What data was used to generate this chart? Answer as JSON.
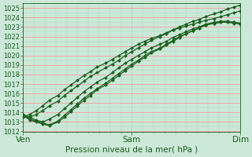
{
  "title": "Pression niveau de la mer( hPa )",
  "bg_color": "#cce8d8",
  "plot_bg_color": "#cce8d8",
  "grid_color_h": "#f0a0a0",
  "grid_color_v": "#a8d8b8",
  "line_color": "#1a6020",
  "marker": "D",
  "marker_size": 2.2,
  "lw": 0.9,
  "ylim": [
    1012,
    1025.5
  ],
  "yticks": [
    1012,
    1013,
    1014,
    1015,
    1016,
    1017,
    1018,
    1019,
    1020,
    1021,
    1022,
    1023,
    1024,
    1025
  ],
  "xtick_labels": [
    "Ven",
    "Sam",
    "Dim"
  ],
  "xtick_positions": [
    0.0,
    0.5,
    1.0
  ],
  "xlabel_fontsize": 7.5,
  "ylabel_fontsize": 6.0,
  "lines": [
    {
      "x": [
        0.0,
        0.03,
        0.06,
        0.09,
        0.12,
        0.16,
        0.19,
        0.22,
        0.25,
        0.28,
        0.31,
        0.34,
        0.38,
        0.41,
        0.44,
        0.47,
        0.5,
        0.53,
        0.56,
        0.59,
        0.63,
        0.66,
        0.69,
        0.72,
        0.75,
        0.78,
        0.81,
        0.84,
        0.88,
        0.91,
        0.94,
        0.97,
        1.0
      ],
      "y": [
        1013.5,
        1013.5,
        1013.8,
        1014.2,
        1014.7,
        1015.2,
        1015.8,
        1016.3,
        1016.8,
        1017.3,
        1017.8,
        1018.2,
        1018.7,
        1019.1,
        1019.5,
        1020.0,
        1020.4,
        1020.8,
        1021.2,
        1021.6,
        1022.0,
        1022.3,
        1022.7,
        1023.0,
        1023.3,
        1023.6,
        1023.8,
        1024.1,
        1024.4,
        1024.6,
        1024.9,
        1025.1,
        1025.3
      ]
    },
    {
      "x": [
        0.0,
        0.03,
        0.06,
        0.09,
        0.12,
        0.16,
        0.19,
        0.22,
        0.25,
        0.28,
        0.31,
        0.34,
        0.38,
        0.41,
        0.44,
        0.47,
        0.5,
        0.53,
        0.56,
        0.59,
        0.63,
        0.66,
        0.69,
        0.72,
        0.75,
        0.78,
        0.81,
        0.84,
        0.88,
        0.91,
        0.94,
        0.97,
        1.0
      ],
      "y": [
        1013.8,
        1013.2,
        1013.0,
        1012.8,
        1012.6,
        1013.0,
        1013.5,
        1014.1,
        1014.7,
        1015.3,
        1015.8,
        1016.4,
        1016.9,
        1017.4,
        1017.9,
        1018.4,
        1018.9,
        1019.4,
        1019.8,
        1020.3,
        1020.7,
        1021.1,
        1021.5,
        1021.9,
        1022.3,
        1022.6,
        1022.9,
        1023.2,
        1023.4,
        1023.5,
        1023.5,
        1023.4,
        1023.3
      ]
    },
    {
      "x": [
        0.0,
        0.03,
        0.06,
        0.09,
        0.12,
        0.16,
        0.19,
        0.22,
        0.25,
        0.28,
        0.31,
        0.34,
        0.38,
        0.41,
        0.44,
        0.47,
        0.5,
        0.53,
        0.56,
        0.59,
        0.63,
        0.66,
        0.69,
        0.72,
        0.75,
        0.78,
        0.81,
        0.84,
        0.88,
        0.91,
        0.94,
        0.97,
        1.0
      ],
      "y": [
        1013.6,
        1013.3,
        1013.1,
        1012.9,
        1012.7,
        1013.1,
        1013.7,
        1014.3,
        1014.9,
        1015.5,
        1016.0,
        1016.5,
        1017.1,
        1017.6,
        1018.1,
        1018.6,
        1019.1,
        1019.5,
        1020.0,
        1020.4,
        1020.8,
        1021.2,
        1021.6,
        1022.0,
        1022.3,
        1022.6,
        1022.9,
        1023.2,
        1023.4,
        1023.5,
        1023.6,
        1023.5,
        1023.4
      ]
    },
    {
      "x": [
        0.0,
        0.03,
        0.06,
        0.09,
        0.12,
        0.16,
        0.19,
        0.22,
        0.25,
        0.28,
        0.31,
        0.34,
        0.38,
        0.41,
        0.44,
        0.47,
        0.5,
        0.53,
        0.56,
        0.59,
        0.63,
        0.66,
        0.69,
        0.72,
        0.75,
        0.78,
        0.81,
        0.84,
        0.88,
        0.91,
        0.94,
        0.97,
        1.0
      ],
      "y": [
        1013.8,
        1013.5,
        1013.2,
        1013.0,
        1013.3,
        1013.8,
        1014.4,
        1015.0,
        1015.6,
        1016.2,
        1016.7,
        1017.2,
        1017.7,
        1018.2,
        1018.7,
        1019.2,
        1019.6,
        1020.0,
        1020.4,
        1020.8,
        1021.2,
        1021.5,
        1021.9,
        1022.2,
        1022.5,
        1022.8,
        1023.0,
        1023.3,
        1023.5,
        1023.6,
        1023.6,
        1023.5,
        1023.4
      ]
    },
    {
      "x": [
        0.0,
        0.03,
        0.06,
        0.09,
        0.12,
        0.16,
        0.19,
        0.22,
        0.25,
        0.28,
        0.31,
        0.34,
        0.38,
        0.41,
        0.44,
        0.47,
        0.5,
        0.53,
        0.56,
        0.59,
        0.63,
        0.66,
        0.69,
        0.72,
        0.75,
        0.78,
        0.81,
        0.84,
        0.88,
        0.91,
        0.94,
        0.97,
        1.0
      ],
      "y": [
        1013.5,
        1013.8,
        1014.2,
        1014.7,
        1015.3,
        1015.8,
        1016.4,
        1016.9,
        1017.4,
        1017.9,
        1018.3,
        1018.8,
        1019.2,
        1019.6,
        1020.0,
        1020.4,
        1020.8,
        1021.2,
        1021.5,
        1021.8,
        1022.1,
        1022.4,
        1022.7,
        1022.9,
        1023.1,
        1023.3,
        1023.5,
        1023.7,
        1023.9,
        1024.1,
        1024.3,
        1024.5,
        1024.7
      ]
    }
  ],
  "n_xgrid_minor": 10,
  "n_ygrid_minor": 2
}
